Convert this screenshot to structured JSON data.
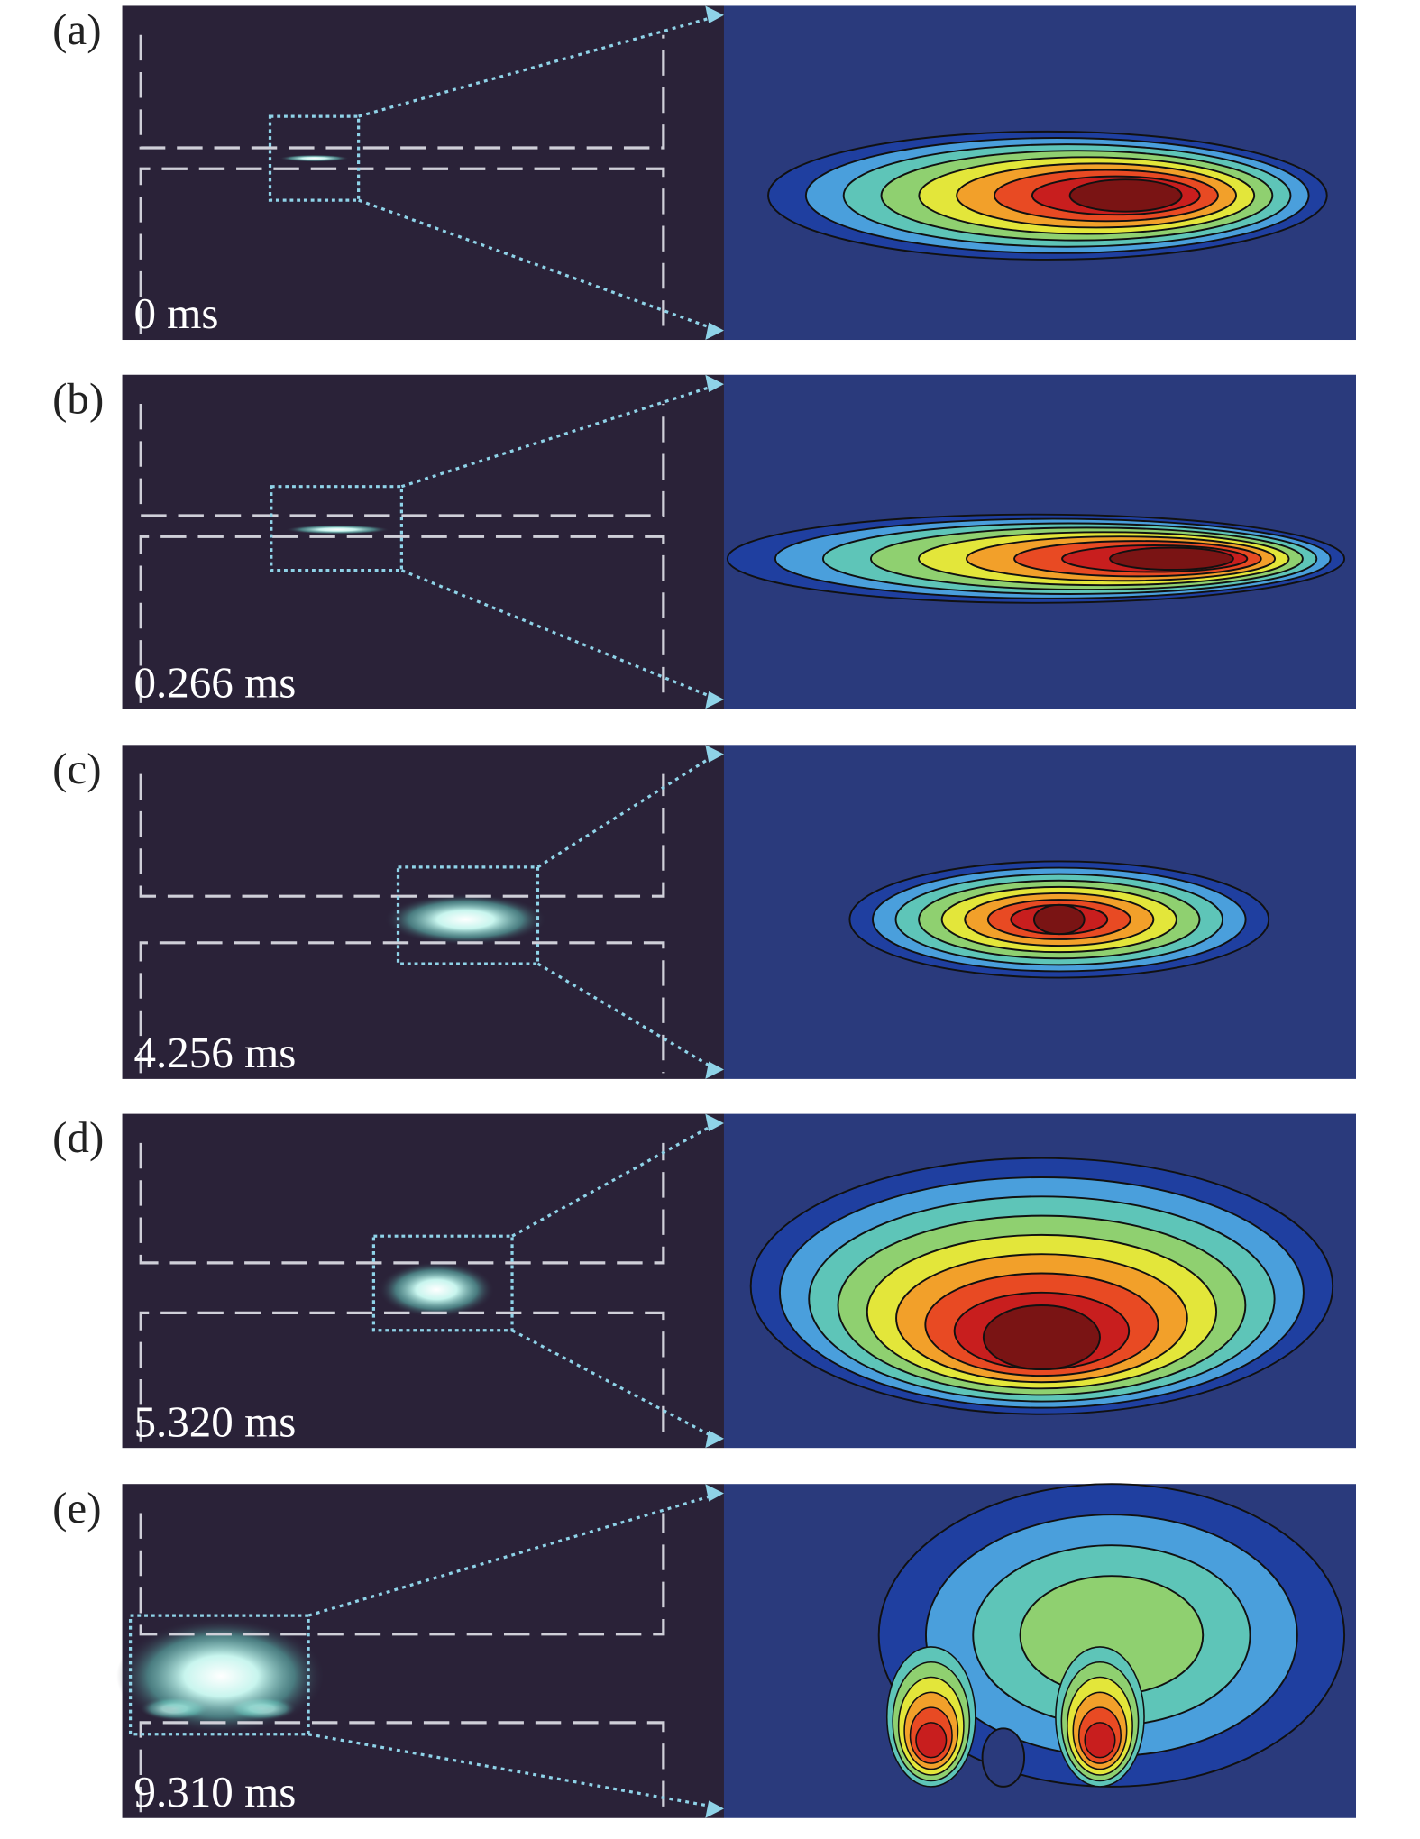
{
  "panels": [
    {
      "label": "(a)",
      "time": "0 ms"
    },
    {
      "label": "(b)",
      "time": "0.266 ms"
    },
    {
      "label": "(c)",
      "time": "4.256 ms"
    },
    {
      "label": "(d)",
      "time": "5.320 ms"
    },
    {
      "label": "(e)",
      "time": "9.310 ms"
    }
  ]
}
